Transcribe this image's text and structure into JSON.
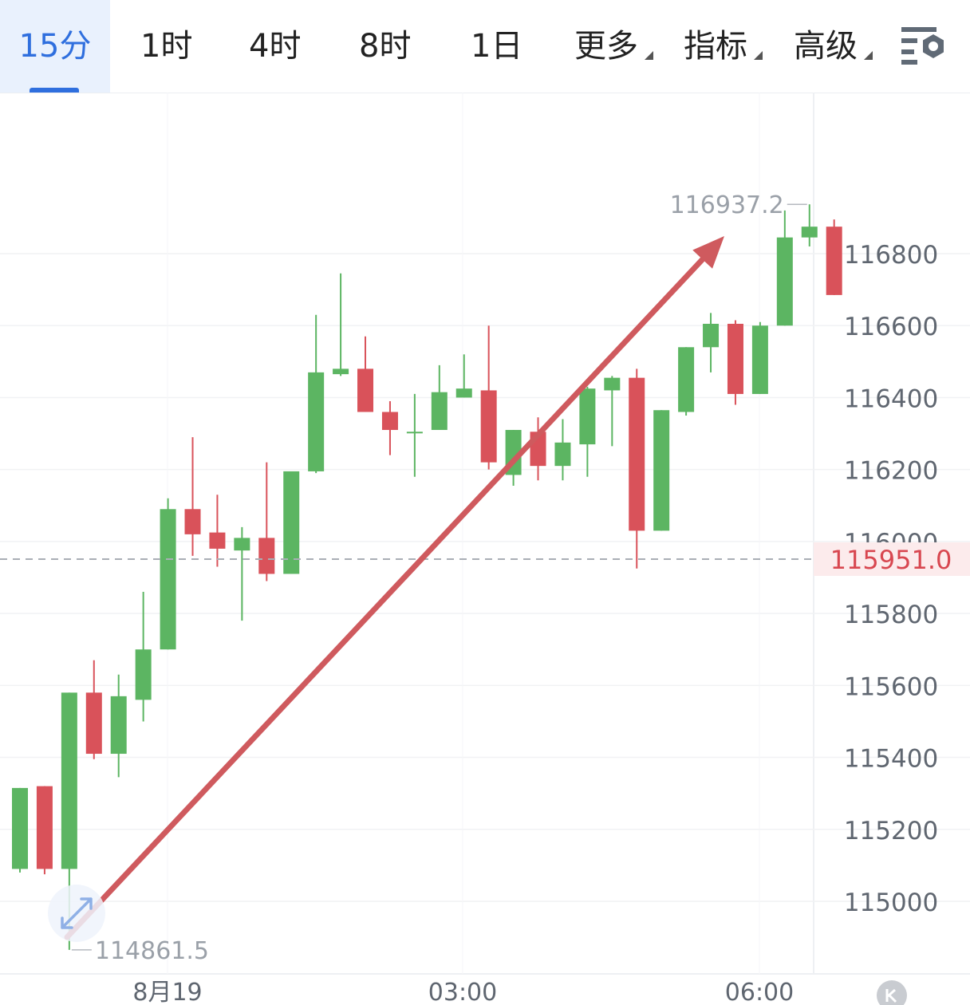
{
  "toolbar": {
    "tabs": [
      {
        "label": "15分",
        "active": true
      },
      {
        "label": "1时"
      },
      {
        "label": "4时"
      },
      {
        "label": "8时"
      },
      {
        "label": "1日"
      },
      {
        "label": "更多",
        "dropdown": true
      },
      {
        "label": "指标",
        "dropdown": true
      },
      {
        "label": "高级",
        "dropdown": true
      }
    ],
    "settings_icon": "chart-settings-icon"
  },
  "colors": {
    "up": "#5cb562",
    "down": "#d9525a",
    "accent": "#2f6fde",
    "arrow": "#cf5a5e"
  },
  "chart_data": {
    "type": "candlestick",
    "interval": "15分",
    "ylim": [
      114800,
      117100
    ],
    "y_ticks": [
      116800,
      116600,
      116400,
      116200,
      116000,
      115800,
      115600,
      115400,
      115200,
      115000
    ],
    "x_ticks": [
      "8月19",
      "03:00",
      "06:00"
    ],
    "current_price": "115951.0",
    "max_label": "116937.2",
    "min_label": "114861.5",
    "candles": [
      {
        "o": 115090,
        "h": 115315,
        "l": 115080,
        "c": 115315
      },
      {
        "o": 115320,
        "h": 115320,
        "l": 115075,
        "c": 115090
      },
      {
        "o": 115090,
        "h": 115580,
        "l": 114865,
        "c": 115580
      },
      {
        "o": 115580,
        "h": 115670,
        "l": 115395,
        "c": 115410
      },
      {
        "o": 115410,
        "h": 115630,
        "l": 115345,
        "c": 115570
      },
      {
        "o": 115560,
        "h": 115860,
        "l": 115500,
        "c": 115700
      },
      {
        "o": 115700,
        "h": 116120,
        "l": 115700,
        "c": 116090
      },
      {
        "o": 116090,
        "h": 116290,
        "l": 115960,
        "c": 116020
      },
      {
        "o": 116025,
        "h": 116130,
        "l": 115930,
        "c": 115980
      },
      {
        "o": 115975,
        "h": 116040,
        "l": 115780,
        "c": 116010
      },
      {
        "o": 116010,
        "h": 116220,
        "l": 115890,
        "c": 115910
      },
      {
        "o": 115910,
        "h": 116190,
        "l": 115910,
        "c": 116195
      },
      {
        "o": 116195,
        "h": 116630,
        "l": 116190,
        "c": 116470
      },
      {
        "o": 116465,
        "h": 116745,
        "l": 116460,
        "c": 116480
      },
      {
        "o": 116480,
        "h": 116570,
        "l": 116360,
        "c": 116360
      },
      {
        "o": 116360,
        "h": 116390,
        "l": 116240,
        "c": 116310
      },
      {
        "o": 116305,
        "h": 116410,
        "l": 116180,
        "c": 116305
      },
      {
        "o": 116310,
        "h": 116490,
        "l": 116310,
        "c": 116415
      },
      {
        "o": 116400,
        "h": 116520,
        "l": 116400,
        "c": 116425
      },
      {
        "o": 116420,
        "h": 116600,
        "l": 116200,
        "c": 116220
      },
      {
        "o": 116185,
        "h": 116310,
        "l": 116155,
        "c": 116310
      },
      {
        "o": 116305,
        "h": 116345,
        "l": 116170,
        "c": 116210
      },
      {
        "o": 116210,
        "h": 116340,
        "l": 116170,
        "c": 116275
      },
      {
        "o": 116270,
        "h": 116430,
        "l": 116180,
        "c": 116425
      },
      {
        "o": 116420,
        "h": 116460,
        "l": 116265,
        "c": 116455
      },
      {
        "o": 116455,
        "h": 116480,
        "l": 115925,
        "c": 116030
      },
      {
        "o": 116030,
        "h": 116365,
        "l": 116030,
        "c": 116365
      },
      {
        "o": 116360,
        "h": 116540,
        "l": 116350,
        "c": 116540
      },
      {
        "o": 116540,
        "h": 116635,
        "l": 116470,
        "c": 116605
      },
      {
        "o": 116605,
        "h": 116615,
        "l": 116380,
        "c": 116410
      },
      {
        "o": 116410,
        "h": 116610,
        "l": 116410,
        "c": 116600
      },
      {
        "o": 116600,
        "h": 116920,
        "l": 116600,
        "c": 116845
      },
      {
        "o": 116845,
        "h": 116937,
        "l": 116820,
        "c": 116875
      },
      {
        "o": 116875,
        "h": 116895,
        "l": 116685,
        "c": 116685
      }
    ]
  }
}
